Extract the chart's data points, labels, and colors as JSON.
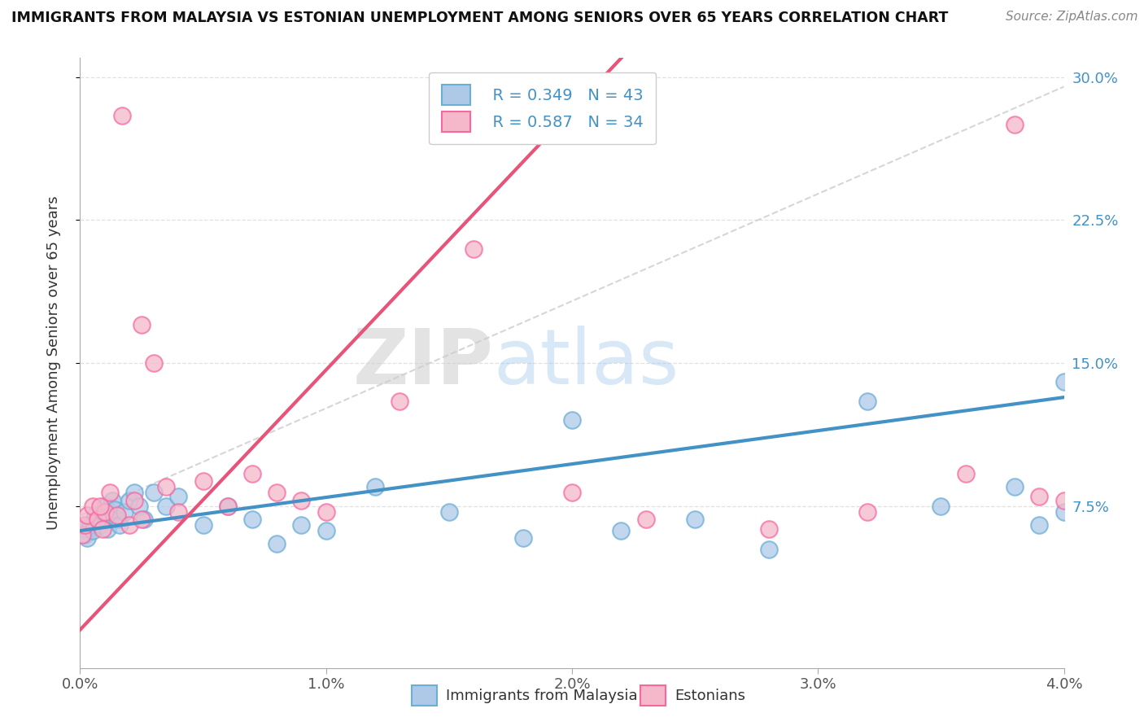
{
  "title": "IMMIGRANTS FROM MALAYSIA VS ESTONIAN UNEMPLOYMENT AMONG SENIORS OVER 65 YEARS CORRELATION CHART",
  "source": "Source: ZipAtlas.com",
  "ylabel": "Unemployment Among Seniors over 65 years",
  "xlabel_blue": "Immigrants from Malaysia",
  "xlabel_pink": "Estonians",
  "legend_blue_R": "R = 0.349",
  "legend_blue_N": "N = 43",
  "legend_pink_R": "R = 0.587",
  "legend_pink_N": "N = 34",
  "xlim": [
    0.0,
    0.04
  ],
  "ylim": [
    -0.01,
    0.31
  ],
  "yticks_right": [
    0.075,
    0.15,
    0.225,
    0.3
  ],
  "ytick_labels_right": [
    "7.5%",
    "15.0%",
    "22.5%",
    "30.0%"
  ],
  "xticks": [
    0.0,
    0.01,
    0.02,
    0.03,
    0.04
  ],
  "xtick_labels": [
    "0.0%",
    "1.0%",
    "2.0%",
    "3.0%",
    "4.0%"
  ],
  "blue_color": "#aec9e8",
  "pink_color": "#f4b8ca",
  "blue_edge_color": "#6baed6",
  "pink_edge_color": "#f768a1",
  "blue_line_color": "#4292c6",
  "pink_line_color": "#e8537a",
  "dash_line_color": "#f4b8ca",
  "watermark_zip": "ZIP",
  "watermark_atlas": "atlas",
  "blue_scatter_x": [
    0.0001,
    0.0002,
    0.0003,
    0.0004,
    0.0005,
    0.0006,
    0.0007,
    0.0008,
    0.0009,
    0.001,
    0.0011,
    0.0012,
    0.0013,
    0.0014,
    0.0015,
    0.0016,
    0.0018,
    0.002,
    0.0022,
    0.0024,
    0.0026,
    0.003,
    0.0035,
    0.004,
    0.005,
    0.006,
    0.007,
    0.008,
    0.009,
    0.01,
    0.012,
    0.015,
    0.018,
    0.02,
    0.022,
    0.025,
    0.028,
    0.032,
    0.035,
    0.038,
    0.039,
    0.04,
    0.04
  ],
  "blue_scatter_y": [
    0.063,
    0.06,
    0.058,
    0.065,
    0.062,
    0.07,
    0.068,
    0.065,
    0.072,
    0.075,
    0.063,
    0.07,
    0.078,
    0.073,
    0.068,
    0.065,
    0.072,
    0.078,
    0.082,
    0.075,
    0.068,
    0.082,
    0.075,
    0.08,
    0.065,
    0.075,
    0.068,
    0.055,
    0.065,
    0.062,
    0.085,
    0.072,
    0.058,
    0.12,
    0.062,
    0.068,
    0.052,
    0.13,
    0.075,
    0.085,
    0.065,
    0.14,
    0.072
  ],
  "pink_scatter_x": [
    0.0001,
    0.0002,
    0.0003,
    0.0005,
    0.0007,
    0.0009,
    0.001,
    0.0012,
    0.0015,
    0.0017,
    0.002,
    0.0022,
    0.0025,
    0.003,
    0.0035,
    0.004,
    0.005,
    0.006,
    0.007,
    0.008,
    0.009,
    0.01,
    0.013,
    0.016,
    0.02,
    0.023,
    0.028,
    0.032,
    0.036,
    0.038,
    0.039,
    0.04,
    0.0008,
    0.0025
  ],
  "pink_scatter_y": [
    0.06,
    0.065,
    0.07,
    0.075,
    0.068,
    0.063,
    0.072,
    0.082,
    0.07,
    0.28,
    0.065,
    0.078,
    0.17,
    0.15,
    0.085,
    0.072,
    0.088,
    0.075,
    0.092,
    0.082,
    0.078,
    0.072,
    0.13,
    0.21,
    0.082,
    0.068,
    0.063,
    0.072,
    0.092,
    0.275,
    0.08,
    0.078,
    0.075,
    0.068
  ],
  "blue_line_x0": 0.0,
  "blue_line_x1": 0.04,
  "blue_line_y0": 0.062,
  "blue_line_y1": 0.132,
  "pink_line_x0": 0.0,
  "pink_line_x1": 0.022,
  "pink_line_y0": 0.01,
  "pink_line_y1": 0.31
}
